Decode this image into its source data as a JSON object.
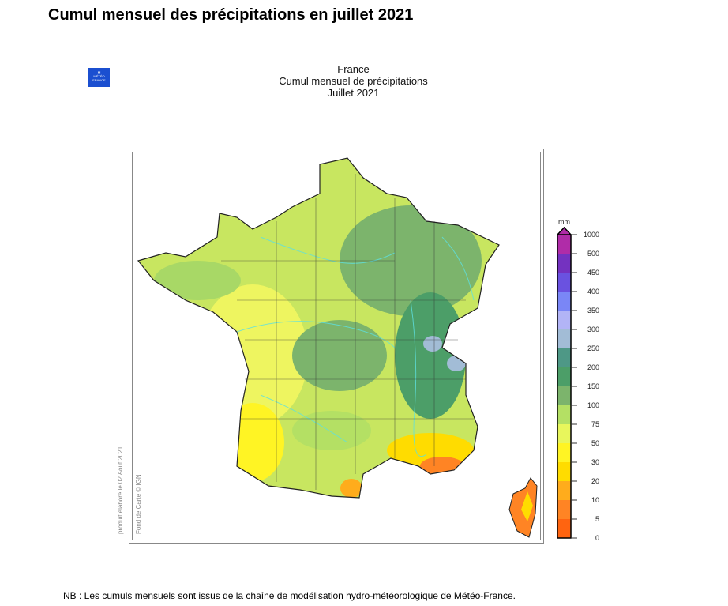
{
  "page_title": "Cumul mensuel des précipitations en juillet 2021",
  "logo_text": "MÉTÉO FRANCE",
  "map": {
    "title_lines": [
      "France",
      "Cumul mensuel de précipitations",
      "Juillet 2021"
    ],
    "credit_product": "produit élaboré le 02 Août 2021",
    "credit_basemap": "Fond de Carte © IGN"
  },
  "legend": {
    "unit": "mm",
    "ticks": [
      "0",
      "5",
      "10",
      "20",
      "30",
      "50",
      "75",
      "100",
      "150",
      "200",
      "250",
      "300",
      "350",
      "400",
      "450",
      "500",
      "1000"
    ],
    "colors": [
      "#ff6410",
      "#ff8424",
      "#ffac1c",
      "#ffdc00",
      "#fff424",
      "#e8f65c",
      "#b4e064",
      "#7cb46c",
      "#4c9e68",
      "#4e9886",
      "#a2bcd6",
      "#b2b4f6",
      "#7a86f6",
      "#6a52e0",
      "#7432c0",
      "#b02ca8"
    ]
  },
  "footnote": "NB : Les cumuls mensuels sont issus de la chaîne de modélisation hydro-météorologique de Météo-France."
}
